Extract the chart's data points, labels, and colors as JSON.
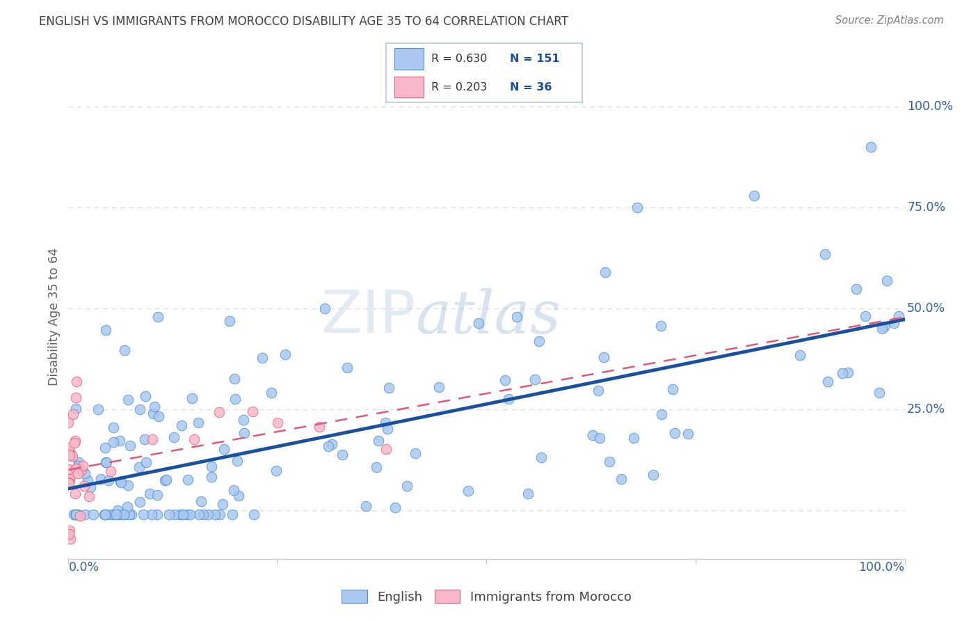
{
  "title": "ENGLISH VS IMMIGRANTS FROM MOROCCO DISABILITY AGE 35 TO 64 CORRELATION CHART",
  "source": "Source: ZipAtlas.com",
  "ylabel": "Disability Age 35 to 64",
  "r_english": 0.63,
  "n_english": 151,
  "r_morocco": 0.203,
  "n_morocco": 36,
  "color_english_fill": "#aac8f0",
  "color_english_edge": "#5090d0",
  "color_morocco_fill": "#f8b8c8",
  "color_morocco_edge": "#e06080",
  "color_line_english": "#1a50a0",
  "color_line_morocco": "#e05878",
  "color_grid": "#d4dce8",
  "color_title": "#404040",
  "color_axis_labels": "#3060a0",
  "color_source": "#808080",
  "background_color": "#ffffff",
  "xlim": [
    0.0,
    1.0
  ],
  "ylim": [
    -0.12,
    1.08
  ],
  "yticks": [
    0.0,
    0.25,
    0.5,
    0.75,
    1.0
  ],
  "ytick_labels_right": [
    "",
    "25.0%",
    "50.0%",
    "75.0%",
    "100.0%"
  ]
}
